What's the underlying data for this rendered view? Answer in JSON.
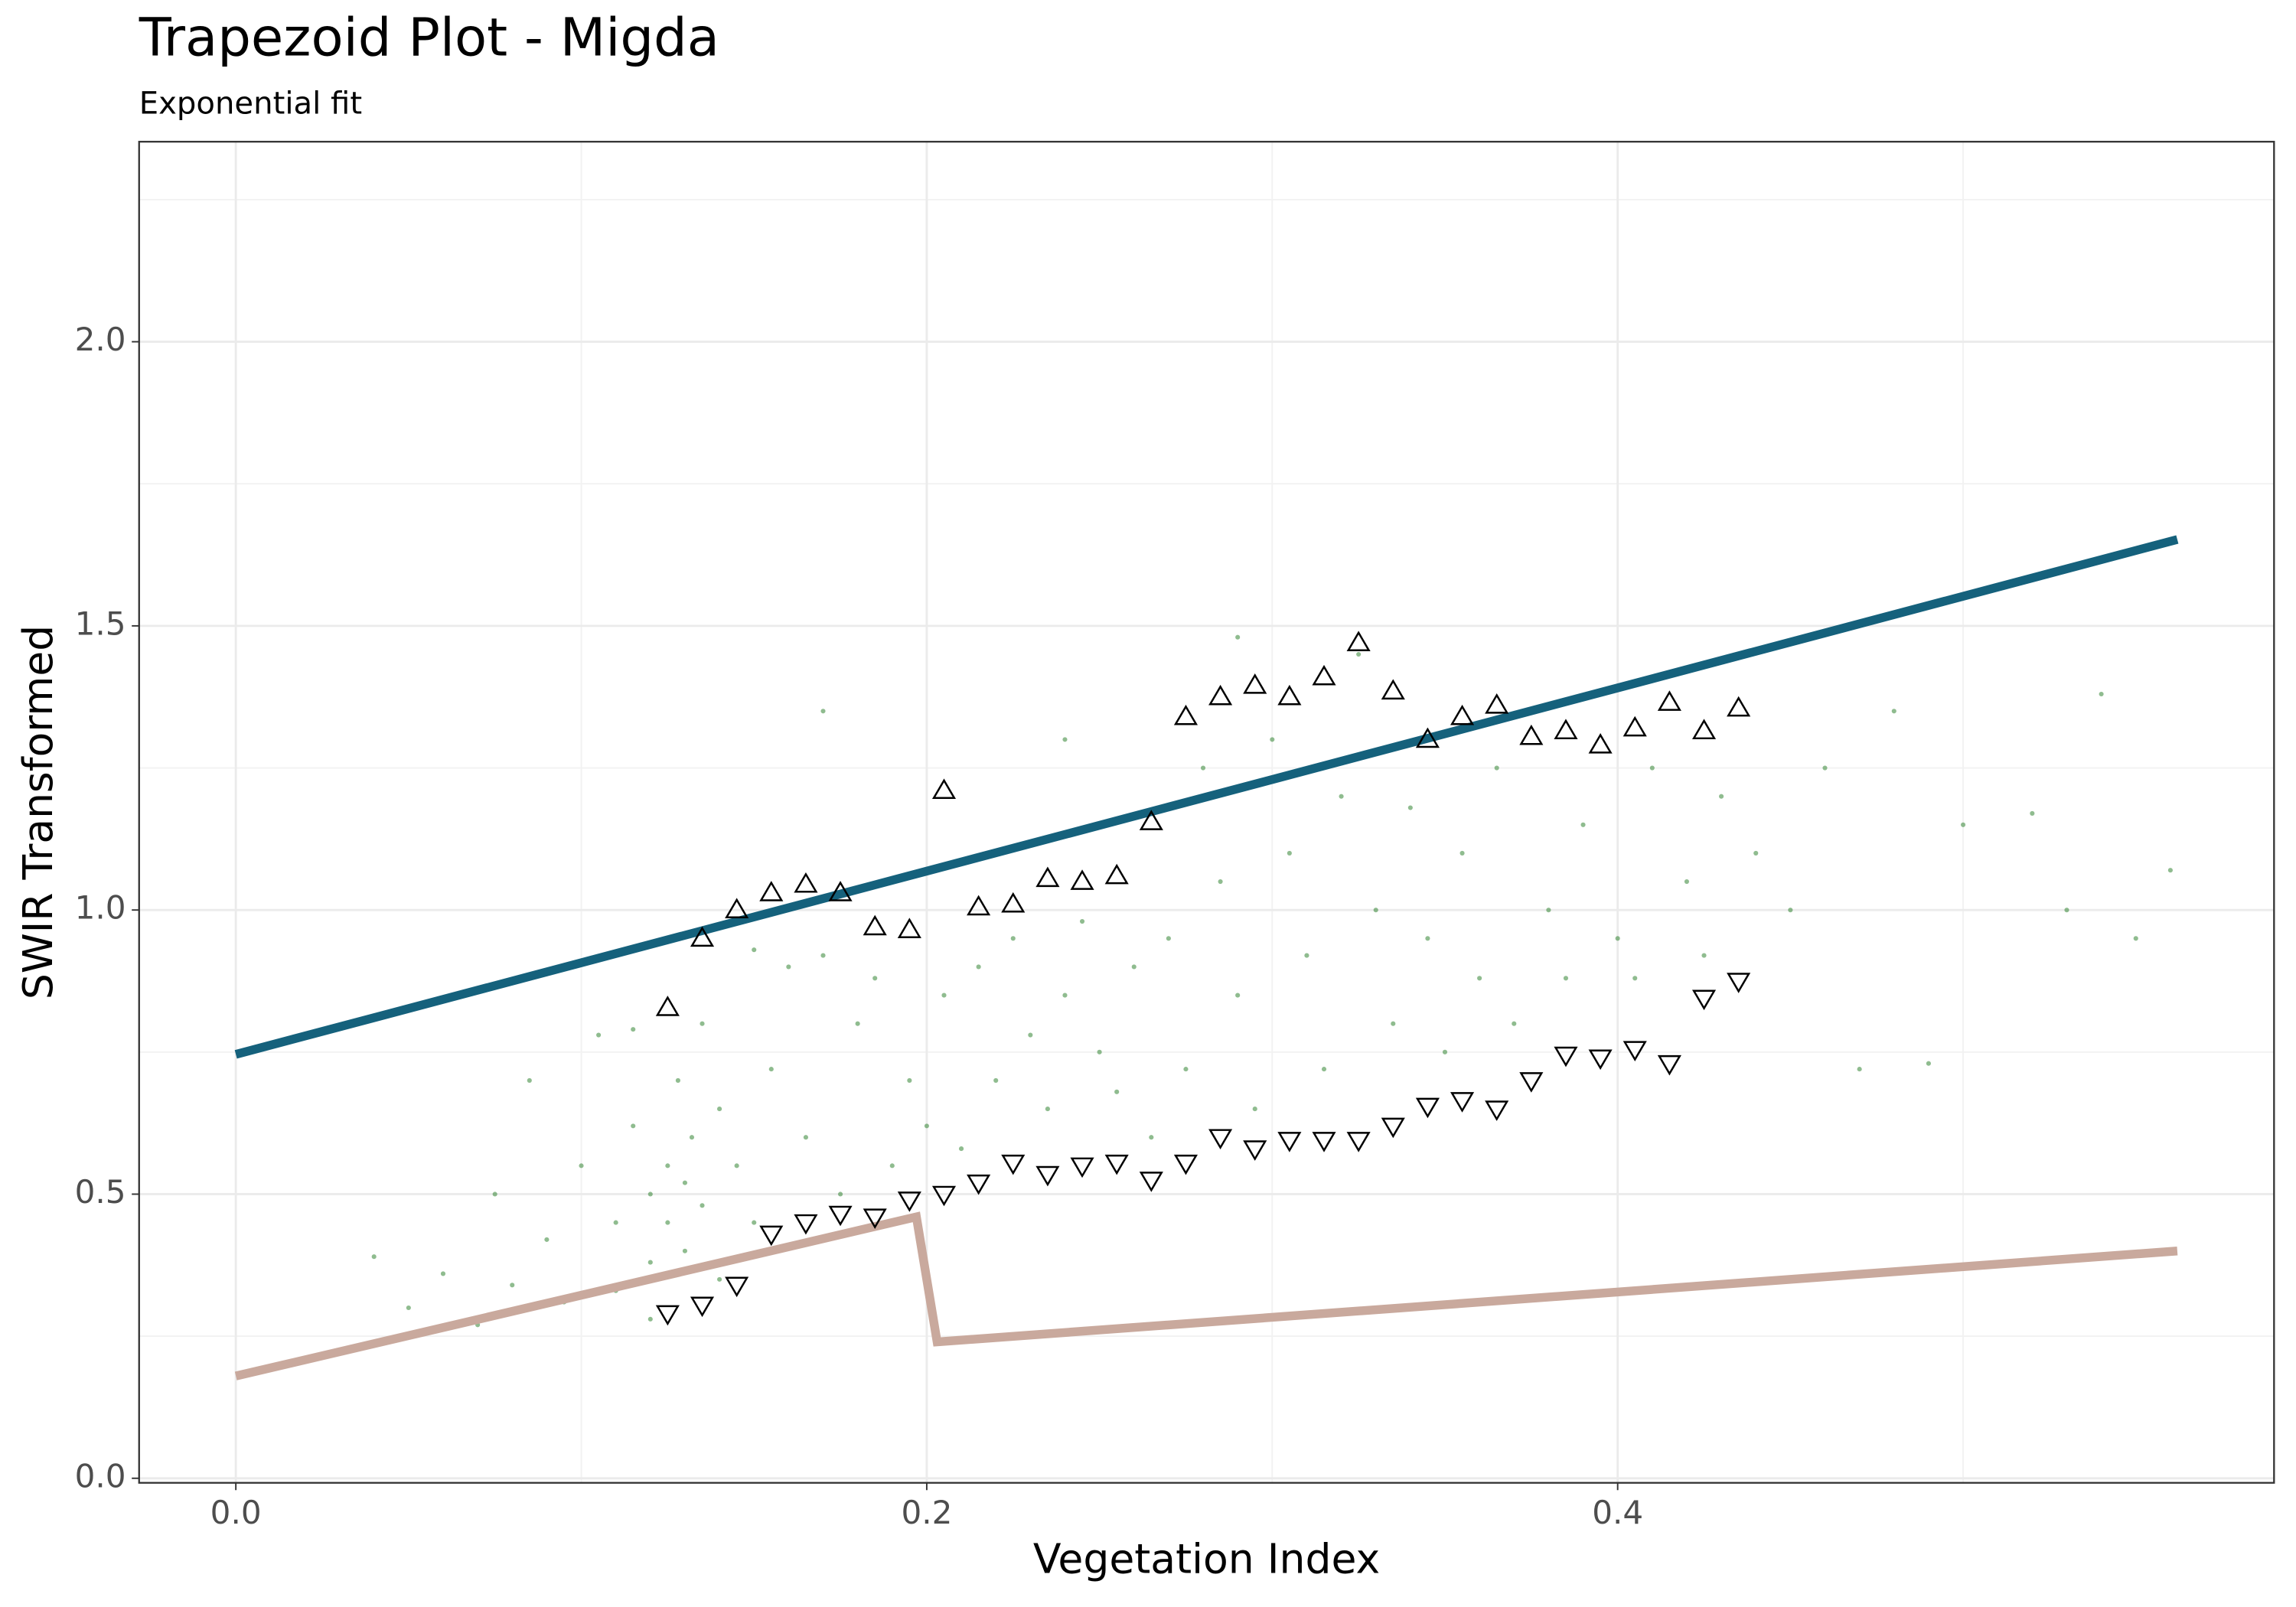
{
  "chart_data": {
    "type": "scatter",
    "title": "Trapezoid Plot -  Migda",
    "subtitle": "Exponential fit",
    "x_label": "Vegetation Index",
    "y_label": "SWIR Transformed",
    "xlim": [
      -0.028,
      0.59
    ],
    "ylim": [
      -0.008,
      2.352
    ],
    "xticks": [
      {
        "value": 0,
        "label": "0.0"
      },
      0.2,
      0.4
    ],
    "yticks": [
      {
        "value": 0,
        "label": "0.0"
      },
      0.5,
      {
        "value": 1,
        "label": "1.0"
      },
      1.5,
      {
        "value": 2,
        "label": "2.0"
      }
    ],
    "x_minor_ticks": [
      0.1,
      0.3,
      0.5
    ],
    "y_minor_ticks": [
      0.25,
      0.75,
      1.25,
      1.75,
      2.25
    ],
    "grid": true,
    "series": [
      {
        "style": "points",
        "marker": "dot",
        "color": "#1f7a1f",
        "x": [
          0.04,
          0.05,
          0.06,
          0.07,
          0.075,
          0.08,
          0.085,
          0.09,
          0.095,
          0.1,
          0.105,
          0.11,
          0.11,
          0.115,
          0.115,
          0.12,
          0.12,
          0.12,
          0.125,
          0.125,
          0.128,
          0.13,
          0.13,
          0.132,
          0.135,
          0.135,
          0.14,
          0.14,
          0.145,
          0.15,
          0.15,
          0.155,
          0.16,
          0.165,
          0.17,
          0.175,
          0.18,
          0.185,
          0.19,
          0.195,
          0.2,
          0.205,
          0.21,
          0.215,
          0.22,
          0.225,
          0.23,
          0.235,
          0.24,
          0.245,
          0.25,
          0.255,
          0.26,
          0.265,
          0.27,
          0.275,
          0.28,
          0.285,
          0.29,
          0.295,
          0.3,
          0.305,
          0.31,
          0.315,
          0.32,
          0.325,
          0.33,
          0.335,
          0.34,
          0.345,
          0.35,
          0.355,
          0.36,
          0.365,
          0.37,
          0.38,
          0.385,
          0.39,
          0.4,
          0.405,
          0.41,
          0.42,
          0.425,
          0.43,
          0.44,
          0.45,
          0.46,
          0.47,
          0.48,
          0.49,
          0.5,
          0.52,
          0.53,
          0.54,
          0.55,
          0.56,
          0.24,
          0.17,
          0.29
        ],
        "values": [
          0.39,
          0.3,
          0.36,
          0.27,
          0.5,
          0.34,
          0.7,
          0.42,
          0.31,
          0.55,
          0.78,
          0.45,
          0.33,
          0.62,
          0.79,
          0.5,
          0.38,
          0.28,
          0.55,
          0.45,
          0.7,
          0.52,
          0.4,
          0.6,
          0.48,
          0.8,
          0.35,
          0.65,
          0.55,
          0.93,
          0.45,
          0.72,
          0.9,
          0.6,
          0.92,
          0.5,
          0.8,
          0.88,
          0.55,
          0.7,
          0.62,
          0.85,
          0.58,
          0.9,
          0.7,
          0.95,
          0.78,
          0.65,
          0.85,
          0.98,
          0.75,
          0.68,
          0.9,
          0.6,
          0.95,
          0.72,
          1.25,
          1.05,
          0.85,
          0.65,
          1.3,
          1.1,
          0.92,
          0.72,
          1.2,
          1.45,
          1.0,
          0.8,
          1.18,
          0.95,
          0.75,
          1.1,
          0.88,
          1.25,
          0.8,
          1.0,
          0.88,
          1.15,
          0.95,
          0.88,
          1.25,
          1.05,
          0.92,
          1.2,
          1.1,
          1.0,
          1.25,
          0.72,
          1.35,
          0.73,
          1.15,
          1.17,
          1.0,
          1.38,
          0.95,
          1.07,
          1.3,
          1.35,
          1.48
        ]
      },
      {
        "style": "points",
        "marker": "triangle-up",
        "color": "#000000",
        "x": [
          0.125,
          0.135,
          0.145,
          0.155,
          0.165,
          0.175,
          0.185,
          0.195,
          0.205,
          0.215,
          0.225,
          0.235,
          0.245,
          0.255,
          0.265,
          0.275,
          0.285,
          0.295,
          0.305,
          0.315,
          0.325,
          0.335,
          0.345,
          0.355,
          0.365,
          0.375,
          0.385,
          0.395,
          0.405,
          0.415,
          0.425,
          0.435
        ],
        "values": [
          0.828,
          0.95,
          1.0,
          1.03,
          1.045,
          1.03,
          0.97,
          0.965,
          1.21,
          1.005,
          1.01,
          1.055,
          1.05,
          1.06,
          1.155,
          1.34,
          1.375,
          1.395,
          1.375,
          1.41,
          1.47,
          1.385,
          1.3,
          1.34,
          1.36,
          1.305,
          1.315,
          1.29,
          1.32,
          1.365,
          1.315,
          1.355
        ]
      },
      {
        "style": "points",
        "marker": "triangle-down",
        "color": "#000000",
        "x": [
          0.125,
          0.135,
          0.145,
          0.155,
          0.165,
          0.175,
          0.185,
          0.195,
          0.205,
          0.215,
          0.225,
          0.235,
          0.245,
          0.255,
          0.265,
          0.275,
          0.285,
          0.295,
          0.305,
          0.315,
          0.325,
          0.335,
          0.345,
          0.355,
          0.365,
          0.375,
          0.385,
          0.395,
          0.405,
          0.415,
          0.425,
          0.435
        ],
        "values": [
          0.29,
          0.305,
          0.34,
          0.43,
          0.45,
          0.465,
          0.46,
          0.49,
          0.5,
          0.52,
          0.555,
          0.535,
          0.55,
          0.555,
          0.525,
          0.555,
          0.6,
          0.58,
          0.595,
          0.595,
          0.595,
          0.62,
          0.655,
          0.665,
          0.65,
          0.7,
          0.745,
          0.74,
          0.755,
          0.73,
          0.845,
          0.875
        ]
      },
      {
        "style": "line",
        "color": "#15617c",
        "x": [
          0,
          0.562
        ],
        "values": [
          0.746,
          1.652
        ]
      },
      {
        "style": "line",
        "color": "#c9a99d",
        "x": [
          0,
          0.197,
          0.203,
          0.562
        ],
        "values": [
          0.18,
          0.46,
          0.24,
          0.4
        ]
      }
    ]
  }
}
